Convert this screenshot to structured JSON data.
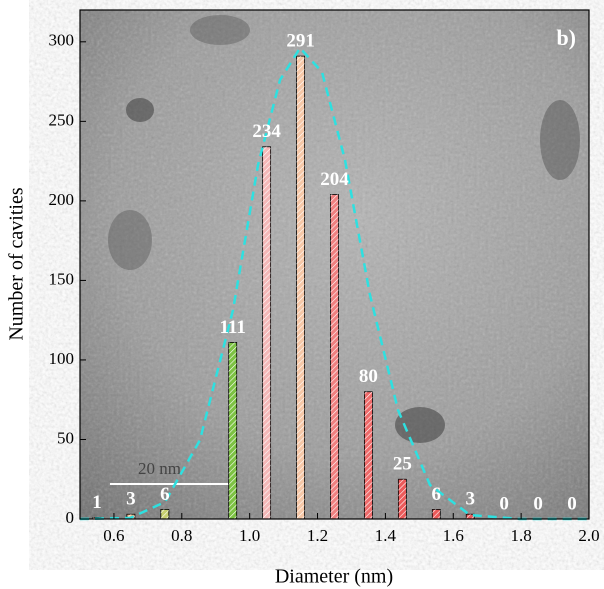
{
  "chart_data": {
    "type": "bar",
    "panel_label": "b)",
    "scale_bar": "20 nm",
    "x_label": "Diameter (nm)",
    "y_label": "Number of cavities",
    "x": [
      0.55,
      0.65,
      0.75,
      0.95,
      1.05,
      1.15,
      1.25,
      1.35,
      1.45,
      1.55,
      1.65,
      1.75,
      1.85,
      1.95
    ],
    "values": [
      1,
      3,
      6,
      111,
      234,
      291,
      204,
      80,
      25,
      6,
      3,
      0,
      0,
      0
    ],
    "colors": [
      "#f2b48a",
      "#f2b48a",
      "#c8d070",
      "#7cc242",
      "#f4b8b8",
      "#f6c8a8",
      "#f08080",
      "#ee6a6a",
      "#ec5a5a",
      "#ec5a5a",
      "#ec5a5a",
      "#ec5a5a",
      "#ec5a5a",
      "#ec5a5a"
    ],
    "fit_color": "#2ee0e0",
    "xlim": [
      0.5,
      2.0
    ],
    "xticks": [
      0.6,
      0.8,
      {
        "value": 1.0,
        "label": "1.0"
      },
      1.2,
      1.4,
      1.6,
      1.8,
      {
        "value": 2.0,
        "label": "2.0"
      }
    ],
    "ylim": [
      0,
      320
    ],
    "yticks": [
      0,
      50,
      100,
      150,
      200,
      250,
      300
    ]
  }
}
